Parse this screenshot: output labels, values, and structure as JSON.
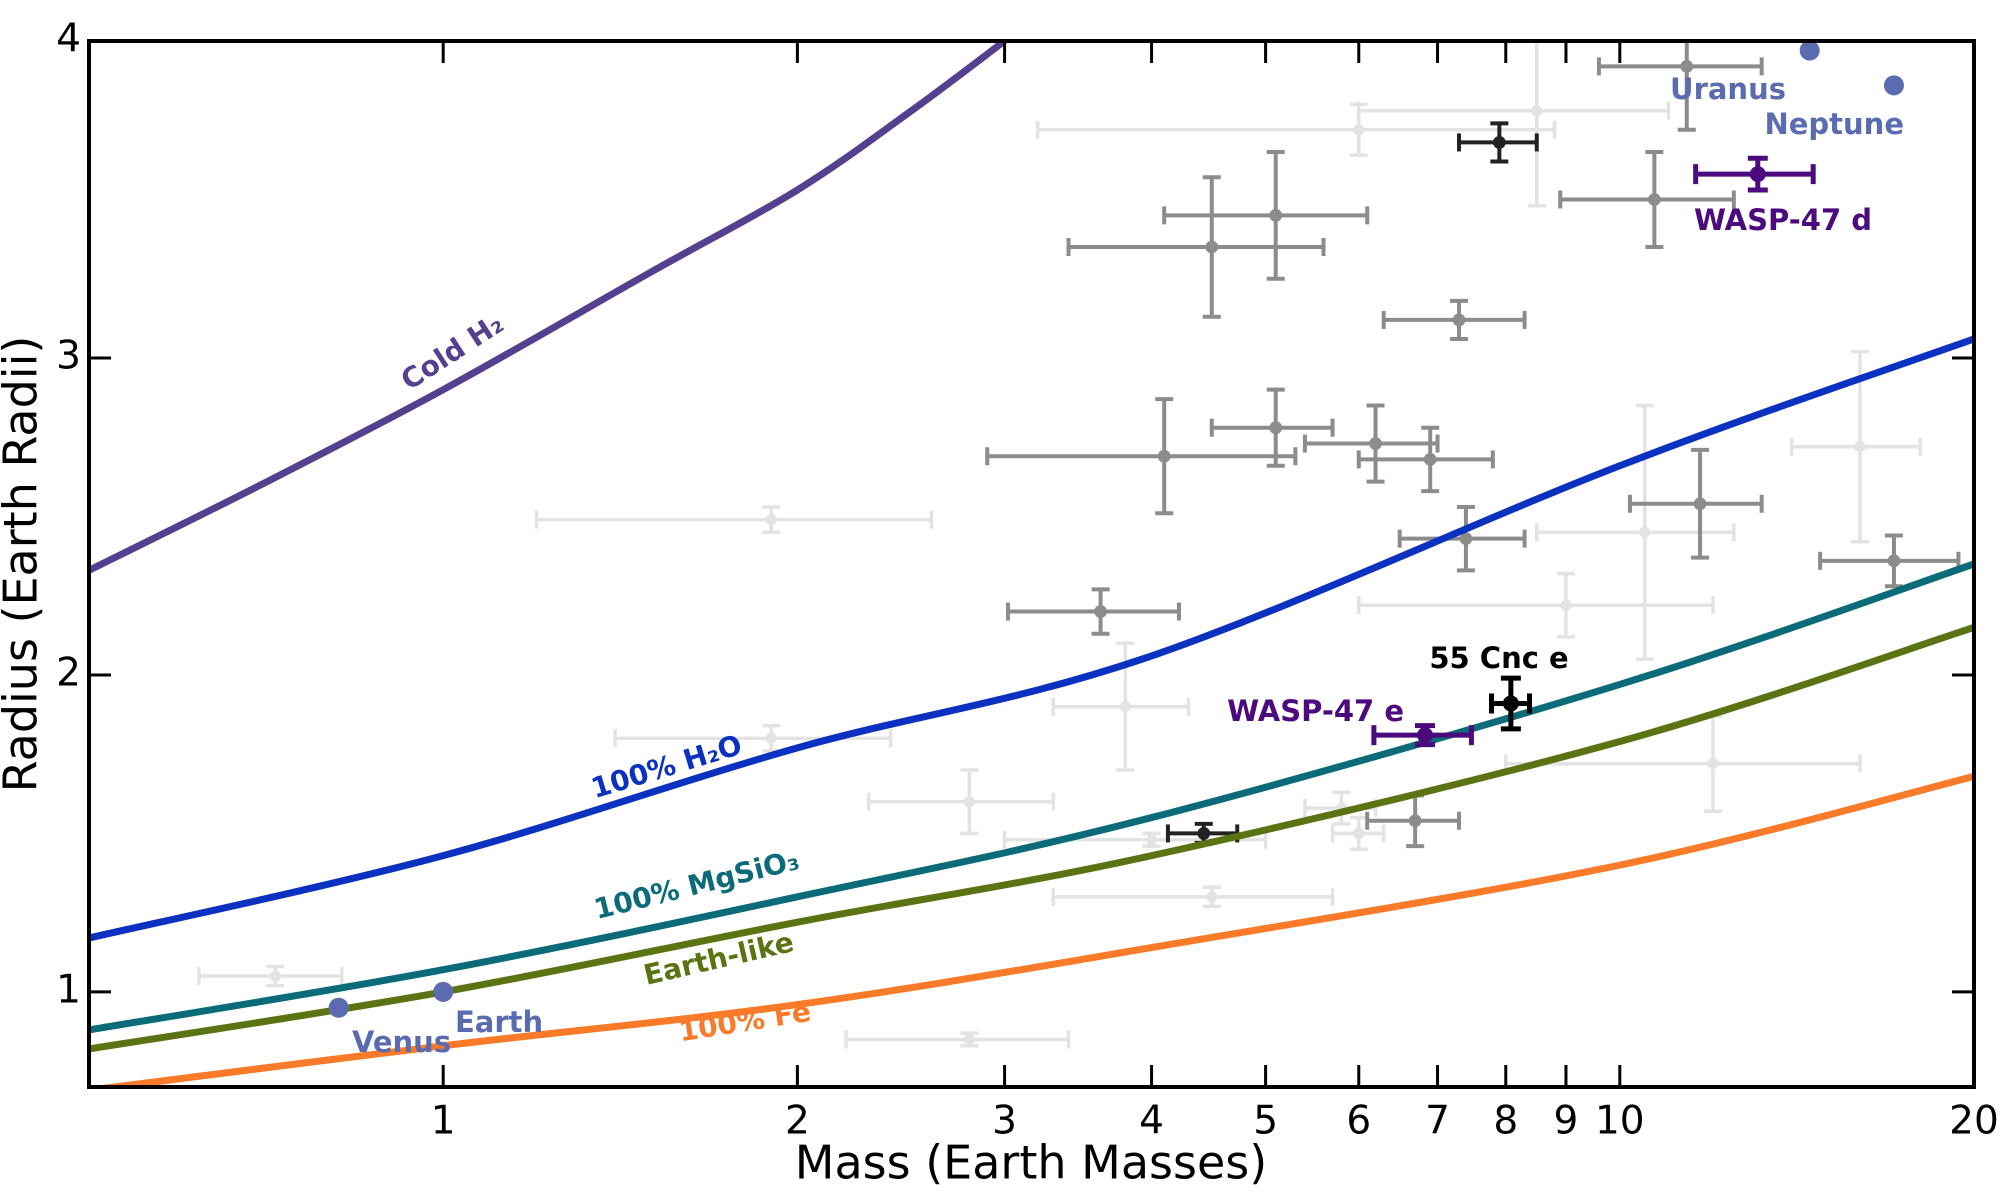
{
  "chart_data": {
    "type": "scatter",
    "x_label": "Mass (Earth Masses)",
    "y_label": "Radius (Earth Radii)",
    "xscale": "log",
    "xlim": [
      0.5,
      20
    ],
    "ylim": [
      0.7,
      4
    ],
    "xticks": [
      1,
      2,
      3,
      4,
      5,
      6,
      7,
      8,
      9,
      10,
      20
    ],
    "yticks": [
      1,
      2,
      3,
      4
    ],
    "curves": [
      {
        "label": "Cold H₂",
        "color": "#553f8f",
        "x": [
          0.5,
          0.7,
          1,
          1.5,
          2,
          2.5,
          3
        ],
        "values": [
          2.33,
          2.6,
          2.9,
          3.27,
          3.53,
          3.78,
          4.0
        ]
      },
      {
        "label": "100% H₂O",
        "color": "#0a31c0",
        "x": [
          0.5,
          1,
          2,
          4,
          10,
          20
        ],
        "values": [
          1.17,
          1.43,
          1.77,
          2.06,
          2.66,
          3.06
        ]
      },
      {
        "label": "100% MgSiO₃",
        "color": "#0b6b78",
        "x": [
          0.5,
          1,
          2,
          4,
          10,
          20
        ],
        "values": [
          0.88,
          1.07,
          1.3,
          1.55,
          1.97,
          2.35
        ]
      },
      {
        "label": "Earth-like",
        "color": "#5b7313",
        "x": [
          0.5,
          1,
          2,
          4,
          10,
          20
        ],
        "values": [
          0.82,
          1.0,
          1.22,
          1.43,
          1.79,
          2.15
        ]
      },
      {
        "label": "100% Fe",
        "color": "#f97a28",
        "x": [
          0.5,
          1,
          2,
          4,
          10,
          20
        ],
        "values": [
          0.69,
          0.83,
          0.96,
          1.14,
          1.4,
          1.68
        ]
      }
    ],
    "samples": [
      {
        "color": "#e3e3e3",
        "x": [
          1.9,
          0.72,
          2.8,
          5.8,
          6.0,
          8.5,
          1.9,
          9.0,
          4.0,
          6.0,
          10.5,
          16.0,
          4.5,
          2.8,
          3.8,
          12.0
        ],
        "y": [
          2.49,
          1.05,
          1.6,
          1.58,
          3.72,
          3.78,
          1.8,
          2.22,
          1.48,
          1.5,
          2.45,
          2.72,
          1.3,
          0.85,
          1.9,
          1.72
        ],
        "xerr": [
          0.7,
          0.1,
          0.5,
          0.4,
          2.8,
          2.5,
          0.5,
          3.0,
          1.0,
          0.3,
          2.0,
          2.0,
          1.2,
          0.6,
          0.5,
          4.0
        ],
        "yerr": [
          0.04,
          0.03,
          0.1,
          0.05,
          0.08,
          0.3,
          0.04,
          0.1,
          0.02,
          0.05,
          0.4,
          0.3,
          0.03,
          0.02,
          0.2,
          0.15
        ]
      },
      {
        "color": "#8c8c8c",
        "x": [
          11.4,
          10.7,
          7.3,
          5.1,
          6.2,
          6.9,
          11.7,
          7.4,
          17.1,
          3.62,
          6.7,
          4.1,
          4.5,
          5.1
        ],
        "y": [
          3.92,
          3.5,
          3.12,
          2.78,
          2.73,
          2.68,
          2.54,
          2.43,
          2.36,
          2.2,
          1.54,
          2.69,
          3.35,
          3.45
        ],
        "xerr": [
          1.8,
          1.8,
          1.0,
          0.6,
          0.8,
          0.9,
          1.5,
          0.9,
          2.3,
          0.6,
          0.6,
          1.2,
          1.1,
          1.0
        ],
        "yerr": [
          0.2,
          0.15,
          0.06,
          0.12,
          0.12,
          0.1,
          0.17,
          0.1,
          0.08,
          0.07,
          0.08,
          0.18,
          0.22,
          0.2
        ]
      },
      {
        "color": "#222222",
        "x": [
          7.9,
          4.43
        ],
        "y": [
          3.68,
          1.5
        ],
        "xerr": [
          0.6,
          0.3
        ],
        "yerr": [
          0.06,
          0.03
        ]
      }
    ],
    "planets": [
      {
        "label": "55 Cnc e",
        "color": "#000000",
        "x": 8.08,
        "y": 1.91,
        "xerr": 0.3,
        "yerr": 0.08
      },
      {
        "label": "WASP-47 e",
        "color": "#4b0a7d",
        "x": 6.83,
        "y": 1.81,
        "xerr": 0.65,
        "yerr": 0.03
      },
      {
        "label": "WASP-47 d",
        "color": "#4b0a7d",
        "x": 13.1,
        "y": 3.58,
        "xerr": 1.5,
        "yerr": 0.05
      }
    ],
    "solar_system": {
      "color": "#5b6bb0",
      "labels": [
        "Venus",
        "Earth",
        "Uranus",
        "Neptune"
      ],
      "x": [
        0.815,
        1,
        14.5,
        17.1
      ],
      "y": [
        0.95,
        1,
        3.97,
        3.86
      ]
    }
  }
}
